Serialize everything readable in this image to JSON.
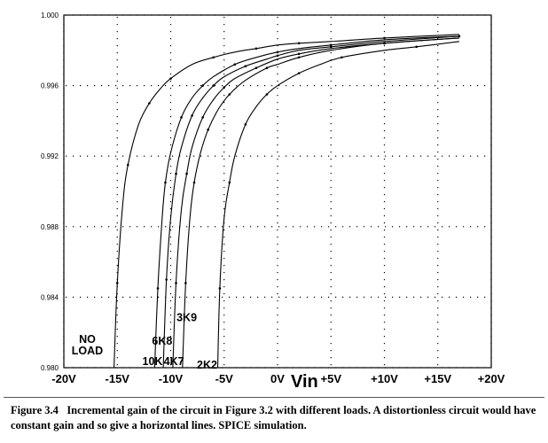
{
  "chart_data": {
    "type": "line",
    "title": "",
    "xlabel": "Vin",
    "ylabel": "",
    "xlim": [
      -20,
      20
    ],
    "ylim": [
      0.98,
      1.0
    ],
    "x_ticks": [
      -20,
      -15,
      -10,
      -5,
      0,
      5,
      10,
      15,
      20
    ],
    "x_tick_labels": [
      "-20V",
      "-15V",
      "-10V",
      "-5V",
      "0V",
      "+5V",
      "+10V",
      "+15V",
      "+20V"
    ],
    "y_ticks": [
      0.98,
      0.984,
      0.988,
      0.992,
      0.996,
      1.0
    ],
    "y_tick_labels": [
      "0.980",
      "0.984",
      "0.988",
      "0.992",
      "0.996",
      "1.000"
    ],
    "grid": "dotted",
    "series": [
      {
        "name": "NO LOAD",
        "x": [
          -15.3,
          -15.0,
          -14.5,
          -14.0,
          -13.0,
          -12.0,
          -11.0,
          -10.0,
          -8.0,
          -6.0,
          -4.0,
          -2.0,
          0.0,
          2.0,
          5.0,
          10.0,
          17.0
        ],
        "y": [
          0.98,
          0.9848,
          0.9892,
          0.9915,
          0.9938,
          0.995,
          0.9958,
          0.9964,
          0.9972,
          0.9976,
          0.9979,
          0.9981,
          0.9983,
          0.9984,
          0.9985,
          0.9987,
          0.9989
        ]
      },
      {
        "name": "10K",
        "x": [
          -11.5,
          -11.2,
          -10.8,
          -10.5,
          -10.0,
          -9.0,
          -8.0,
          -7.0,
          -6.0,
          -4.0,
          -2.0,
          0.0,
          2.0,
          5.0,
          10.0,
          17.0
        ],
        "y": [
          0.98,
          0.9845,
          0.9885,
          0.9905,
          0.9922,
          0.9942,
          0.9953,
          0.996,
          0.9965,
          0.9972,
          0.9976,
          0.9979,
          0.9981,
          0.9983,
          0.9986,
          0.9988
        ]
      },
      {
        "name": "6K8",
        "x": [
          -10.7,
          -10.4,
          -10.0,
          -9.5,
          -9.0,
          -8.0,
          -7.0,
          -6.0,
          -5.0,
          -3.0,
          -1.0,
          0.0,
          2.0,
          5.0,
          10.0,
          17.0
        ],
        "y": [
          0.98,
          0.985,
          0.9885,
          0.991,
          0.9925,
          0.9943,
          0.9953,
          0.996,
          0.9965,
          0.9971,
          0.9975,
          0.9977,
          0.998,
          0.9982,
          0.9985,
          0.9988
        ]
      },
      {
        "name": "4K7",
        "x": [
          -9.8,
          -9.5,
          -9.0,
          -8.5,
          -8.0,
          -7.0,
          -6.0,
          -5.0,
          -4.0,
          -2.0,
          0.0,
          2.0,
          5.0,
          10.0,
          17.0
        ],
        "y": [
          0.98,
          0.9848,
          0.989,
          0.991,
          0.9925,
          0.9942,
          0.9952,
          0.9959,
          0.9964,
          0.997,
          0.9975,
          0.9978,
          0.9981,
          0.9984,
          0.9987
        ]
      },
      {
        "name": "3K9",
        "x": [
          -8.9,
          -8.6,
          -8.2,
          -7.8,
          -7.2,
          -6.5,
          -5.5,
          -4.5,
          -3.0,
          -1.0,
          0.0,
          2.0,
          5.0,
          10.0,
          17.0
        ],
        "y": [
          0.98,
          0.9848,
          0.9885,
          0.9905,
          0.9922,
          0.9935,
          0.9947,
          0.9955,
          0.9963,
          0.997,
          0.9972,
          0.9976,
          0.998,
          0.9984,
          0.9987
        ]
      },
      {
        "name": "2K2",
        "x": [
          -5.6,
          -5.4,
          -5.0,
          -4.5,
          -4.0,
          -3.0,
          -2.0,
          -1.0,
          0.0,
          2.0,
          4.0,
          6.0,
          10.0,
          13.0,
          17.0
        ],
        "y": [
          0.98,
          0.9845,
          0.9885,
          0.9905,
          0.992,
          0.9938,
          0.9948,
          0.9955,
          0.996,
          0.9967,
          0.9972,
          0.9976,
          0.998,
          0.9982,
          0.9985
        ]
      }
    ],
    "series_labels": [
      {
        "series": "NO LOAD",
        "lines": [
          "NO",
          "LOAD"
        ],
        "at": [
          -17.8,
          0.98075
        ]
      },
      {
        "series": "10K",
        "lines": [
          "10K"
        ],
        "at": [
          -11.7,
          0.98015
        ]
      },
      {
        "series": "6K8",
        "lines": [
          "6K8"
        ],
        "at": [
          -10.8,
          0.9813
        ]
      },
      {
        "series": "4K7",
        "lines": [
          "4K7"
        ],
        "at": [
          -9.7,
          0.98015
        ]
      },
      {
        "series": "3K9",
        "lines": [
          "3K9"
        ],
        "at": [
          -8.5,
          0.98265
        ]
      },
      {
        "series": "2K2",
        "lines": [
          "2K2"
        ],
        "at": [
          -6.6,
          0.97995
        ]
      }
    ]
  },
  "caption": {
    "figure_label": "Figure 3.4",
    "text": "Incremental gain of the circuit in Figure 3.2 with different loads. A distortionless circuit would have constant gain and so give a horizontal lines. SPICE simulation."
  }
}
